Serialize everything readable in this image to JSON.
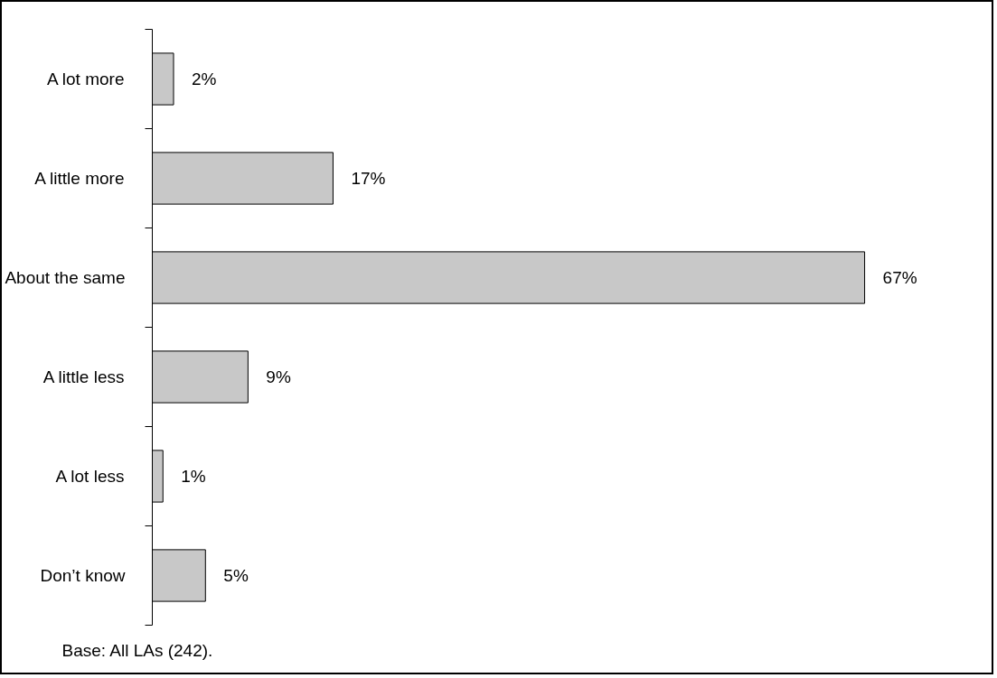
{
  "chart_data": {
    "type": "bar",
    "orientation": "horizontal",
    "categories": [
      "A lot more",
      "A little more",
      "About the same",
      "A little less",
      "A lot less",
      "Don’t know"
    ],
    "values": [
      2,
      17,
      67,
      9,
      1,
      5
    ],
    "color": "#c8c8c8",
    "data_labels": true,
    "value_labels": [
      "2%",
      "17%",
      "67%",
      "9%",
      "1%",
      "5%"
    ],
    "tick_labels": "y",
    "grid": false,
    "annotations": [
      "Base: All LAs (242)."
    ]
  }
}
